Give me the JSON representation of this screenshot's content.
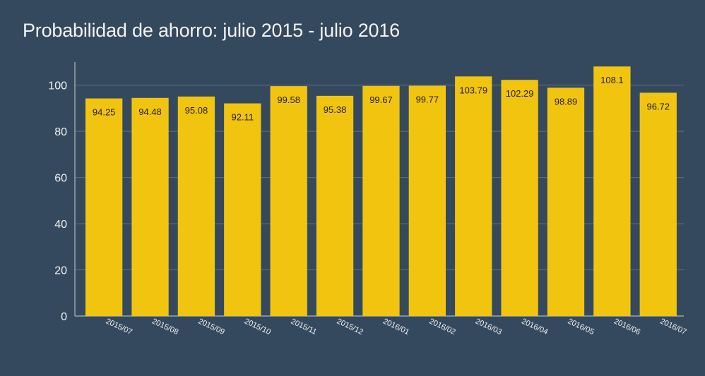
{
  "chart_data": {
    "type": "bar",
    "title": "Probabilidad de ahorro: julio 2015 - julio 2016",
    "xlabel": "",
    "ylabel": "",
    "categories": [
      "2015/07",
      "2015/08",
      "2015/09",
      "2015/10",
      "2015/11",
      "2015/12",
      "2016/01",
      "2016/02",
      "2016/03",
      "2016/04",
      "2016/05",
      "2016/06",
      "2016/07"
    ],
    "values": [
      94.25,
      94.48,
      95.08,
      92.11,
      99.58,
      95.38,
      99.67,
      99.77,
      103.79,
      102.29,
      98.89,
      108.1,
      96.72
    ],
    "ylim": [
      0,
      110
    ],
    "yticks": [
      0,
      20,
      40,
      60,
      80,
      100
    ],
    "grid": true,
    "legend": "none",
    "colors": {
      "background": "#34495e",
      "bar": "#f1c40f",
      "grid": "#5d7185",
      "axis": "#95a5a6",
      "text": "#f2f2f2",
      "data_label": "#222222"
    }
  }
}
